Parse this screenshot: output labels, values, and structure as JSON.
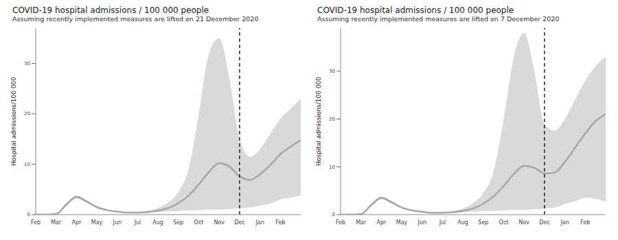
{
  "chart_data": [
    {
      "type": "line",
      "title": "COVID-19 hospital admissions / 100 000 people",
      "subtitle": "Assuming recently implemented measures are lifted on 21 December 2020",
      "y_label": "Hospital admissions/100 000",
      "categories": [
        "Feb",
        null,
        "Mar",
        null,
        "Apr",
        null,
        "May",
        null,
        "Jun",
        null,
        "Jul",
        null,
        "Aug",
        null,
        "Sep",
        null,
        "Oct",
        null,
        "Nov",
        null,
        "Dec",
        null,
        "Jan",
        null,
        "Feb",
        null,
        null
      ],
      "values": [
        0,
        0,
        0.1,
        2.0,
        3.5,
        2.6,
        1.5,
        0.9,
        0.6,
        0.4,
        0.4,
        0.5,
        0.8,
        1.3,
        2.3,
        3.8,
        6.0,
        8.5,
        10.2,
        9.5,
        7.6,
        6.9,
        8.0,
        9.8,
        12,
        13.5,
        14.8
      ],
      "color": "#a6a6a6",
      "band": {
        "lower": [
          0,
          0,
          0.1,
          1.7,
          3.2,
          2.3,
          1.3,
          0.8,
          0.5,
          0.35,
          0.3,
          0.35,
          0.5,
          0.6,
          0.7,
          0.8,
          0.9,
          1.0,
          1.0,
          1.1,
          1.3,
          1.4,
          1.8,
          2.2,
          3.0,
          3.4,
          3.8
        ],
        "upper": [
          0,
          0,
          0.1,
          2.3,
          3.8,
          2.9,
          1.7,
          1.0,
          0.7,
          0.5,
          0.5,
          0.8,
          1.3,
          2.4,
          4.5,
          9,
          20,
          32,
          35,
          27,
          15,
          11.5,
          13,
          16,
          19,
          21,
          23
        ],
        "color": "#d9d9d9"
      },
      "vline": {
        "x": 20,
        "line_style": "dashed",
        "color": "#000000"
      },
      "ylim": [
        0,
        37
      ],
      "yticks": [
        0,
        10,
        20,
        30
      ]
    },
    {
      "type": "line",
      "title": "COVID-19 hospital admissions / 100 000 people",
      "subtitle": "Assuming recently implemented measures are lifted on 7 December 2020",
      "y_label": "Hospital admissions/100 000",
      "categories": [
        "Feb",
        null,
        "Mar",
        null,
        "Apr",
        null,
        "May",
        null,
        "Jun",
        null,
        "Jul",
        null,
        "Aug",
        null,
        "Sep",
        null,
        "Oct",
        null,
        "Nov",
        null,
        "Dec",
        null,
        "Jan",
        null,
        "Feb",
        null,
        null
      ],
      "values": [
        0,
        0,
        0.1,
        2.0,
        3.5,
        2.6,
        1.5,
        0.9,
        0.6,
        0.4,
        0.4,
        0.5,
        0.8,
        1.3,
        2.3,
        3.8,
        6.0,
        8.5,
        10.2,
        9.8,
        8.6,
        8.8,
        11,
        14,
        17,
        19.5,
        21
      ],
      "color": "#a6a6a6",
      "band": {
        "lower": [
          0,
          0,
          0.1,
          1.7,
          3.2,
          2.3,
          1.3,
          0.8,
          0.5,
          0.35,
          0.3,
          0.35,
          0.5,
          0.6,
          0.7,
          0.8,
          0.9,
          1.0,
          1.0,
          1.1,
          1.3,
          1.5,
          2.2,
          2.8,
          3.5,
          3.3,
          2.7
        ],
        "upper": [
          0,
          0,
          0.1,
          2.3,
          3.8,
          2.9,
          1.7,
          1.0,
          0.7,
          0.5,
          0.5,
          0.8,
          1.3,
          2.4,
          4.5,
          9,
          20,
          33,
          38,
          30,
          19,
          17.5,
          20,
          24,
          28,
          31,
          33
        ],
        "color": "#d9d9d9"
      },
      "vline": {
        "x": 20,
        "line_style": "dashed",
        "color": "#000000"
      },
      "ylim": [
        0,
        39
      ],
      "yticks": [
        0,
        10,
        20,
        30
      ]
    }
  ]
}
